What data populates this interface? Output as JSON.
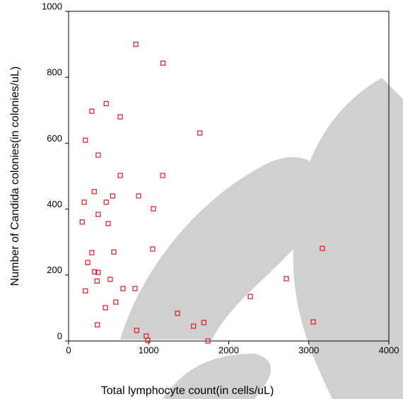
{
  "chart_data": {
    "type": "scatter",
    "x_label": "Total lymphocyte count(in cells/uL)",
    "y_label": "Number of Candida colonies(in colonies/uL)",
    "xlim": [
      0,
      4000
    ],
    "xticks": [
      0,
      1000,
      2000,
      3000,
      4000
    ],
    "ylim": [
      0,
      1000
    ],
    "yticks": [
      0,
      200,
      400,
      600,
      800,
      1000
    ],
    "series": [
      {
        "color": "#e0191c",
        "x": [
          840,
          1180,
          470,
          290,
          645,
          1640,
          210,
          370,
          645,
          1175,
          320,
          550,
          875,
          195,
          470,
          1060,
          370,
          170,
          495,
          1050,
          3170,
          565,
          290,
          240,
          325,
          370,
          355,
          520,
          680,
          830,
          210,
          2720,
          2270,
          590,
          460,
          1360,
          360,
          1690,
          1560,
          3055,
          850,
          970,
          990,
          1740
        ],
        "values": [
          900,
          843,
          720,
          697,
          680,
          631,
          609,
          564,
          502,
          502,
          453,
          440,
          440,
          421,
          421,
          401,
          384,
          361,
          356,
          279,
          281,
          270,
          268,
          238,
          210,
          208,
          182,
          187,
          159,
          159,
          152,
          189,
          135,
          118,
          101,
          84,
          49,
          56,
          45,
          58,
          32,
          15,
          2,
          0
        ]
      }
    ]
  }
}
